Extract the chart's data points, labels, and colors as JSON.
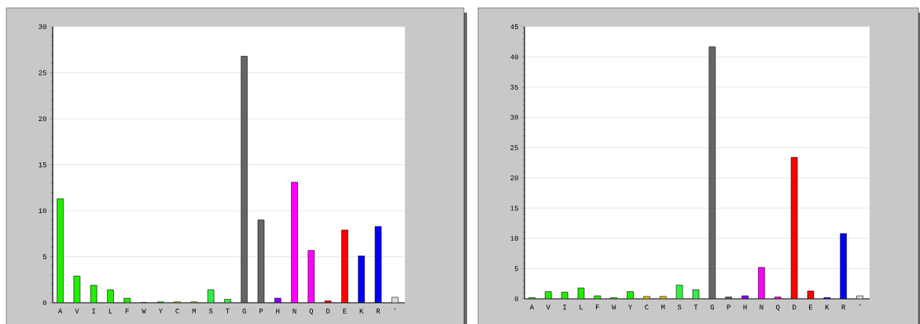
{
  "chart_data": [
    {
      "type": "bar",
      "categories": [
        "A",
        "V",
        "I",
        "L",
        "F",
        "W",
        "Y",
        "C",
        "M",
        "S",
        "T",
        "G",
        "P",
        "H",
        "N",
        "Q",
        "D",
        "E",
        "K",
        "R",
        "-"
      ],
      "values": [
        11.3,
        2.9,
        1.9,
        1.4,
        0.5,
        0,
        0.1,
        0.1,
        0.1,
        1.4,
        0.4,
        26.8,
        9.0,
        0.5,
        13.1,
        5.7,
        0.2,
        7.9,
        5.1,
        8.3,
        0.6
      ],
      "colors": [
        "#22ee00",
        "#22ee00",
        "#22ee00",
        "#22ee00",
        "#22ee00",
        "#22ee00",
        "#22ee00",
        "#cccc00",
        "#cccc00",
        "#33ee44",
        "#33ee44",
        "#666666",
        "#666666",
        "#8800ff",
        "#ff00ff",
        "#ff00ff",
        "#ff0000",
        "#ff0000",
        "#0000ff",
        "#0000ff",
        "#dddddd"
      ],
      "ylim": [
        0,
        30
      ],
      "yticks": [
        0,
        5,
        10,
        15,
        20,
        25,
        30
      ],
      "grid": "y"
    },
    {
      "type": "bar",
      "categories": [
        "A",
        "V",
        "I",
        "L",
        "F",
        "W",
        "Y",
        "C",
        "M",
        "S",
        "T",
        "G",
        "P",
        "H",
        "N",
        "Q",
        "D",
        "E",
        "K",
        "R",
        "-"
      ],
      "values": [
        0.2,
        1.2,
        1.1,
        1.8,
        0.5,
        0.2,
        1.2,
        0.4,
        0.4,
        2.3,
        1.5,
        41.7,
        0.3,
        0.5,
        5.2,
        0.3,
        23.4,
        1.3,
        0.2,
        10.8,
        0.5
      ],
      "colors": [
        "#22ee00",
        "#22ee00",
        "#22ee00",
        "#22ee00",
        "#22ee00",
        "#22ee00",
        "#22ee00",
        "#cccc00",
        "#cccc00",
        "#33ee44",
        "#33ee44",
        "#666666",
        "#666666",
        "#8800ff",
        "#ff00ff",
        "#ff00ff",
        "#ff0000",
        "#ff0000",
        "#0000ff",
        "#0000ff",
        "#dddddd"
      ],
      "ylim": [
        0,
        45
      ],
      "yticks": [
        0,
        5,
        10,
        15,
        20,
        25,
        30,
        35,
        40,
        45
      ],
      "grid": "y"
    }
  ]
}
